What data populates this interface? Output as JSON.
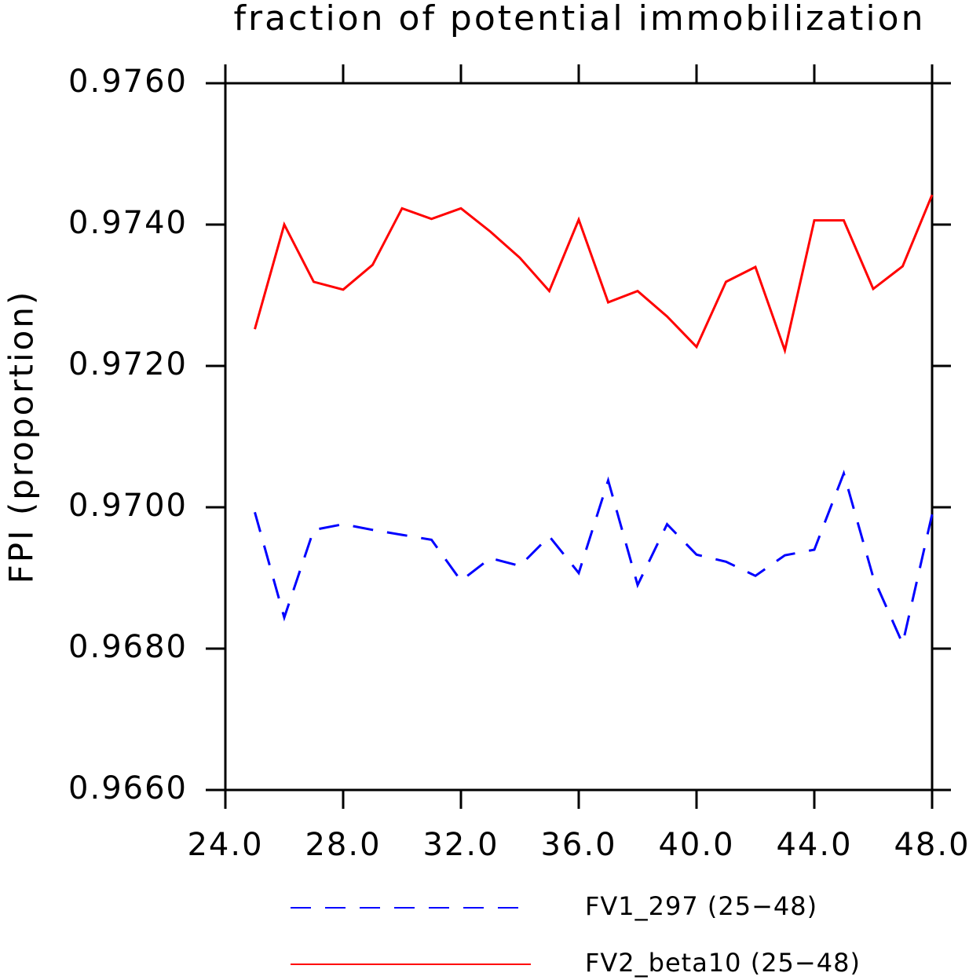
{
  "chart_data": {
    "type": "line",
    "title": "fraction of potential immobilization",
    "y_label": "FPI (proportion)",
    "x": [
      25,
      26,
      27,
      28,
      29,
      30,
      31,
      32,
      33,
      34,
      35,
      36,
      37,
      38,
      39,
      40,
      41,
      42,
      43,
      44,
      45,
      46,
      47,
      48
    ],
    "series": [
      {
        "name": "FV1_297 (25−48)",
        "color": "#0000ff",
        "dashed": true,
        "values": [
          0.96993,
          0.96844,
          0.96968,
          0.96976,
          0.96968,
          0.96961,
          0.96954,
          0.96896,
          0.96928,
          0.96917,
          0.96959,
          0.96907,
          0.97038,
          0.9689,
          0.96976,
          0.96933,
          0.96923,
          0.96903,
          0.96932,
          0.9694,
          0.97048,
          0.96901,
          0.96807,
          0.9699
        ]
      },
      {
        "name": "FV2_beta10 (25−48)",
        "color": "#ff0000",
        "dashed": false,
        "values": [
          0.97252,
          0.974,
          0.97319,
          0.97308,
          0.97343,
          0.97423,
          0.97408,
          0.97423,
          0.9739,
          0.97353,
          0.97306,
          0.97407,
          0.9729,
          0.97306,
          0.9727,
          0.97227,
          0.97319,
          0.9734,
          0.97222,
          0.97406,
          0.97406,
          0.97309,
          0.97341,
          0.97442
        ]
      }
    ],
    "xlim": [
      24,
      48
    ],
    "xticks": [
      {
        "value": 24,
        "label": "24.0"
      },
      {
        "value": 28,
        "label": "28.0"
      },
      {
        "value": 32,
        "label": "32.0"
      },
      {
        "value": 36,
        "label": "36.0"
      },
      {
        "value": 40,
        "label": "40.0"
      },
      {
        "value": 44,
        "label": "44.0"
      },
      {
        "value": 48,
        "label": "48.0"
      }
    ],
    "ylim": [
      0.966,
      0.976
    ],
    "yticks": [
      {
        "value": 0.966,
        "label": "0.9660"
      },
      {
        "value": 0.968,
        "label": "0.9680"
      },
      {
        "value": 0.97,
        "label": "0.9700"
      },
      {
        "value": 0.972,
        "label": "0.9720"
      },
      {
        "value": 0.974,
        "label": "0.9740"
      },
      {
        "value": 0.976,
        "label": "0.9760"
      }
    ],
    "legend": "bottom"
  }
}
